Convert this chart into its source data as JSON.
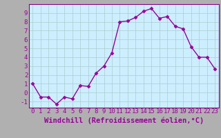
{
  "x": [
    0,
    1,
    2,
    3,
    4,
    5,
    6,
    7,
    8,
    9,
    10,
    11,
    12,
    13,
    14,
    15,
    16,
    17,
    18,
    19,
    20,
    21,
    22,
    23
  ],
  "y": [
    1,
    -0.5,
    -0.5,
    -1.3,
    -0.5,
    -0.7,
    0.8,
    0.7,
    2.2,
    3.0,
    4.5,
    8.0,
    8.1,
    8.5,
    9.2,
    9.5,
    8.4,
    8.6,
    7.5,
    7.2,
    5.2,
    4.0,
    4.0,
    2.7
  ],
  "line_color": "#990099",
  "bg_color": "#cceeff",
  "grid_color": "#aacccc",
  "border_color": "#880088",
  "xlabel": "Windchill (Refroidissement éolien,°C)",
  "ylim": [
    -1.7,
    10.0
  ],
  "xlim": [
    -0.5,
    23.5
  ],
  "yticks": [
    -1,
    0,
    1,
    2,
    3,
    4,
    5,
    6,
    7,
    8,
    9
  ],
  "xticks": [
    0,
    1,
    2,
    3,
    4,
    5,
    6,
    7,
    8,
    9,
    10,
    11,
    12,
    13,
    14,
    15,
    16,
    17,
    18,
    19,
    20,
    21,
    22,
    23
  ],
  "marker": "D",
  "markersize": 2.5,
  "linewidth": 1.0,
  "xlabel_fontsize": 7.5,
  "tick_fontsize": 6.5,
  "fig_bg": "#b0b0b0"
}
